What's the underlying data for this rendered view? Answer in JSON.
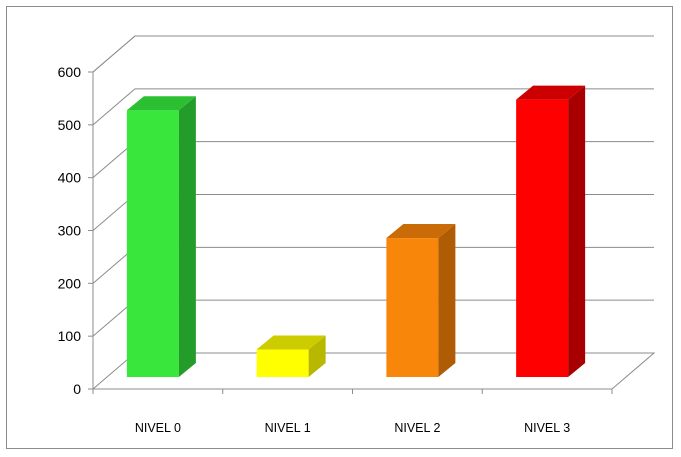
{
  "chart_data": {
    "type": "bar",
    "style": "3d-column",
    "categories": [
      "NIVEL 0",
      "NIVEL 1",
      "NIVEL 2",
      "NIVEL 3"
    ],
    "values": [
      505,
      52,
      263,
      525
    ],
    "ylim": [
      0,
      600
    ],
    "yticks": [
      0,
      100,
      200,
      300,
      400,
      500,
      600
    ],
    "grid": true,
    "legend": "none",
    "colors": {
      "front": [
        "#38e63c",
        "#ffff00",
        "#f7860a",
        "#ff0000"
      ],
      "side": [
        "#239c2a",
        "#b8b800",
        "#b05c05",
        "#a80000"
      ],
      "top": [
        "#2bbf31",
        "#cccc00",
        "#c96b06",
        "#cc0000"
      ]
    }
  }
}
